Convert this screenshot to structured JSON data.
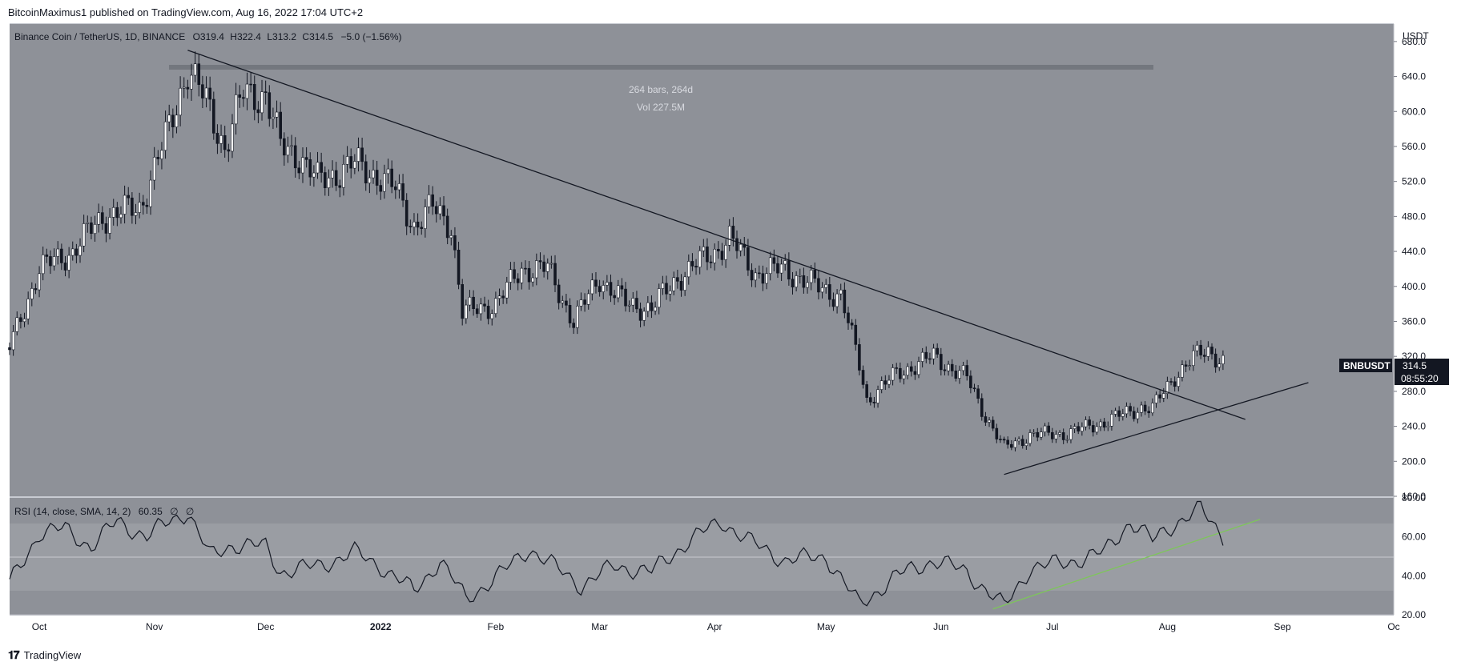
{
  "header": {
    "published": "BitcoinMaximus1 published on TradingView.com, Aug 16, 2022 17:04 UTC+2"
  },
  "footer": {
    "brand": "TradingView"
  },
  "legend": {
    "symbol": "Binance Coin / TetherUS, 1D, BINANCE",
    "o_label": "O",
    "o_value": "319.4",
    "h_label": "H",
    "h_value": "322.4",
    "l_label": "L",
    "l_value": "313.2",
    "c_label": "C",
    "c_value": "314.5",
    "change": "−5.0 (−1.56%)"
  },
  "measure": {
    "bars": "264 bars, 264d",
    "vol": "Vol 227.5M"
  },
  "price_axis": {
    "currency": "USDT",
    "ticks": [
      "680.0",
      "640.0",
      "600.0",
      "560.0",
      "520.0",
      "480.0",
      "440.0",
      "400.0",
      "360.0",
      "320.0",
      "280.0",
      "240.0",
      "200.0",
      "160.0"
    ]
  },
  "price_tag": {
    "symbol": "BNBUSDT",
    "price": "314.5",
    "countdown": "08:55:20"
  },
  "rsi": {
    "label": "RSI (14, close, SMA, 14, 2)",
    "value": "60.35",
    "extra1": "∅",
    "extra2": "∅",
    "ticks": [
      "80.00",
      "60.00",
      "40.00",
      "20.00"
    ]
  },
  "time_axis": [
    "Oct",
    "Nov",
    "Dec",
    "2022",
    "Feb",
    "Mar",
    "Apr",
    "May",
    "Jun",
    "Jul",
    "Aug",
    "Sep",
    "Oc"
  ],
  "colors": {
    "background": "#8e9198",
    "rsi_band": "#9a9da3",
    "candle": "#131722",
    "trendline": "#131722",
    "rsi_trend": "#7ec65a",
    "tag_bg": "#131722"
  },
  "chart_data": {
    "type": "candlestick",
    "title": "Binance Coin / TetherUS, 1D, BINANCE",
    "ylabel": "USDT",
    "ylim": [
      160,
      700
    ],
    "x_range": [
      "2021-09-23",
      "2022-10-01"
    ],
    "close_series": [
      [
        "2021-09-23",
        330
      ],
      [
        "2021-10-01",
        420
      ],
      [
        "2021-10-10",
        440
      ],
      [
        "2021-10-18",
        480
      ],
      [
        "2021-10-28",
        490
      ],
      [
        "2021-11-05",
        580
      ],
      [
        "2021-11-10",
        650
      ],
      [
        "2021-11-15",
        610
      ],
      [
        "2021-11-20",
        560
      ],
      [
        "2021-11-25",
        620
      ],
      [
        "2021-12-01",
        620
      ],
      [
        "2021-12-05",
        560
      ],
      [
        "2021-12-10",
        550
      ],
      [
        "2021-12-15",
        520
      ],
      [
        "2021-12-25",
        540
      ],
      [
        "2022-01-01",
        525
      ],
      [
        "2022-01-05",
        510
      ],
      [
        "2022-01-10",
        470
      ],
      [
        "2022-01-15",
        490
      ],
      [
        "2022-01-20",
        470
      ],
      [
        "2022-01-23",
        370
      ],
      [
        "2022-02-01",
        380
      ],
      [
        "2022-02-08",
        420
      ],
      [
        "2022-02-15",
        420
      ],
      [
        "2022-02-22",
        360
      ],
      [
        "2022-03-01",
        410
      ],
      [
        "2022-03-08",
        380
      ],
      [
        "2022-03-15",
        375
      ],
      [
        "2022-03-22",
        410
      ],
      [
        "2022-04-01",
        440
      ],
      [
        "2022-04-05",
        455
      ],
      [
        "2022-04-12",
        415
      ],
      [
        "2022-04-20",
        420
      ],
      [
        "2022-04-28",
        400
      ],
      [
        "2022-05-05",
        390
      ],
      [
        "2022-05-10",
        310
      ],
      [
        "2022-05-12",
        270
      ],
      [
        "2022-05-20",
        300
      ],
      [
        "2022-05-30",
        320
      ],
      [
        "2022-06-08",
        295
      ],
      [
        "2022-06-12",
        260
      ],
      [
        "2022-06-18",
        215
      ],
      [
        "2022-06-25",
        230
      ],
      [
        "2022-07-05",
        232
      ],
      [
        "2022-07-15",
        245
      ],
      [
        "2022-07-25",
        262
      ],
      [
        "2022-07-28",
        260
      ],
      [
        "2022-08-03",
        298
      ],
      [
        "2022-08-08",
        318
      ],
      [
        "2022-08-12",
        327
      ],
      [
        "2022-08-16",
        314.5
      ]
    ],
    "rsi_series": [
      [
        "2021-09-23",
        36
      ],
      [
        "2021-10-01",
        62
      ],
      [
        "2021-10-08",
        64
      ],
      [
        "2021-10-15",
        55
      ],
      [
        "2021-10-22",
        68
      ],
      [
        "2021-10-30",
        60
      ],
      [
        "2021-11-05",
        68
      ],
      [
        "2021-11-10",
        73
      ],
      [
        "2021-11-16",
        50
      ],
      [
        "2021-11-22",
        56
      ],
      [
        "2021-12-01",
        55
      ],
      [
        "2021-12-05",
        42
      ],
      [
        "2021-12-15",
        45
      ],
      [
        "2021-12-25",
        52
      ],
      [
        "2022-01-01",
        45
      ],
      [
        "2022-01-10",
        32
      ],
      [
        "2022-01-17",
        48
      ],
      [
        "2022-01-24",
        28
      ],
      [
        "2022-02-03",
        42
      ],
      [
        "2022-02-10",
        54
      ],
      [
        "2022-02-24",
        35
      ],
      [
        "2022-03-05",
        45
      ],
      [
        "2022-03-15",
        42
      ],
      [
        "2022-03-25",
        58
      ],
      [
        "2022-04-03",
        68
      ],
      [
        "2022-04-10",
        58
      ],
      [
        "2022-04-20",
        48
      ],
      [
        "2022-05-01",
        50
      ],
      [
        "2022-05-10",
        25
      ],
      [
        "2022-05-20",
        40
      ],
      [
        "2022-05-30",
        48
      ],
      [
        "2022-06-08",
        42
      ],
      [
        "2022-06-18",
        24
      ],
      [
        "2022-06-25",
        44
      ],
      [
        "2022-07-05",
        47
      ],
      [
        "2022-07-15",
        52
      ],
      [
        "2022-07-22",
        68
      ],
      [
        "2022-07-28",
        58
      ],
      [
        "2022-08-03",
        67
      ],
      [
        "2022-08-10",
        74
      ],
      [
        "2022-08-16",
        60.35
      ]
    ],
    "rsi_ylim": [
      20,
      80
    ],
    "rsi_levels": [
      70,
      50,
      30
    ],
    "trendlines": [
      {
        "pane": "price",
        "from": [
          "2021-11-10",
          670
        ],
        "to": [
          "2022-08-22",
          248
        ]
      },
      {
        "pane": "price",
        "from": [
          "2022-06-18",
          185
        ],
        "to": [
          "2022-09-08",
          290
        ]
      },
      {
        "pane": "rsi",
        "from": [
          "2022-06-15",
          23
        ],
        "to": [
          "2022-08-26",
          69
        ],
        "color": "green"
      }
    ],
    "range_measure": {
      "from": "2021-11-10",
      "to": "2022-08-01",
      "bars": 264,
      "volume": "227.5M"
    }
  }
}
